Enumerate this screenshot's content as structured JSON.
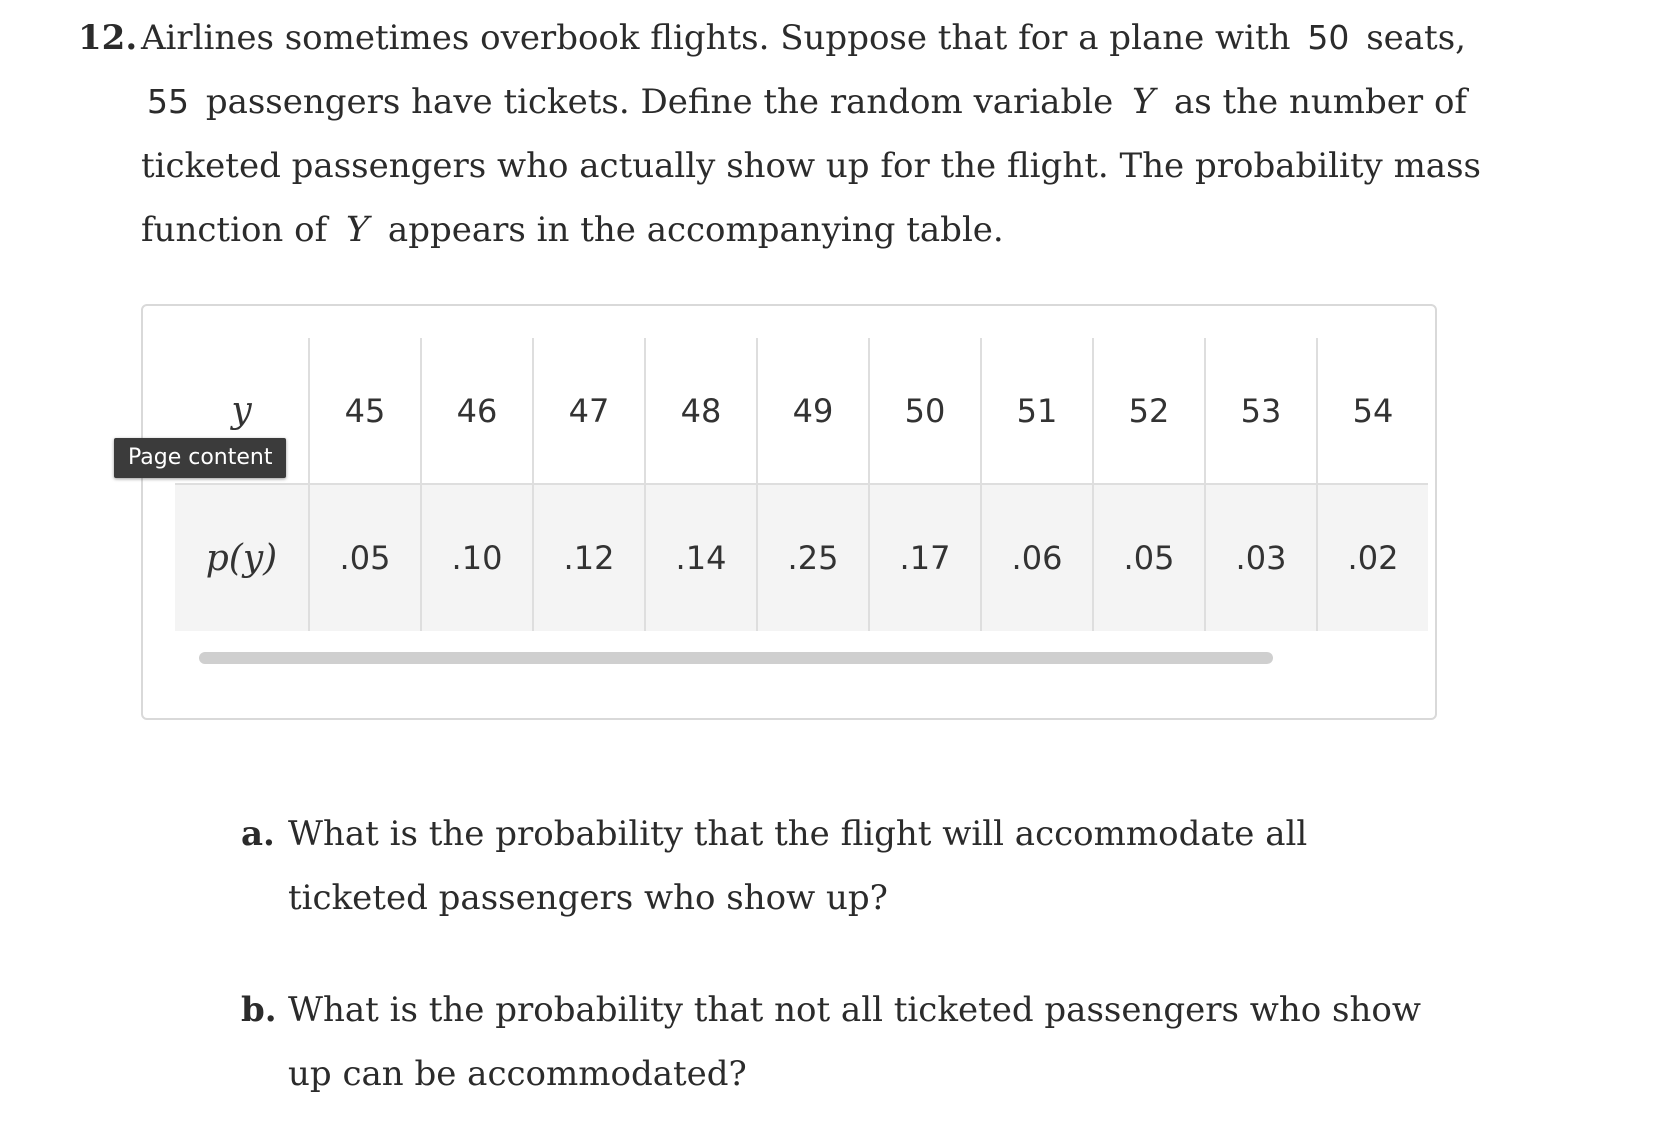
{
  "problem": {
    "number": "12.",
    "text_1": "Airlines sometimes overbook flights. Suppose that for a plane with",
    "seats": "50",
    "text_2": "seats,",
    "tickets": "55",
    "text_3": "passengers have tickets. Define the random variable",
    "var": "Y",
    "text_4": "as the number of ticketed passengers who actually show up for the flight. The probability mass function of",
    "var2": "Y",
    "text_5": "appears in the accompanying table."
  },
  "table": {
    "row_header_y": "y",
    "row_header_p": "p(y)",
    "y_values": [
      "45",
      "46",
      "47",
      "48",
      "49",
      "50",
      "51",
      "52",
      "53",
      "54"
    ],
    "p_values": [
      ".05",
      ".10",
      ".12",
      ".14",
      ".25",
      ".17",
      ".06",
      ".05",
      ".03",
      ".02"
    ]
  },
  "tooltip": {
    "label": "Page content"
  },
  "parts": {
    "a_letter": "a.",
    "a_text": "What is the probability that the flight will accommodate all ticketed passengers who show up?",
    "b_letter": "b.",
    "b_text": "What is the probability that not all ticketed passengers who show up can be accommodated?"
  }
}
